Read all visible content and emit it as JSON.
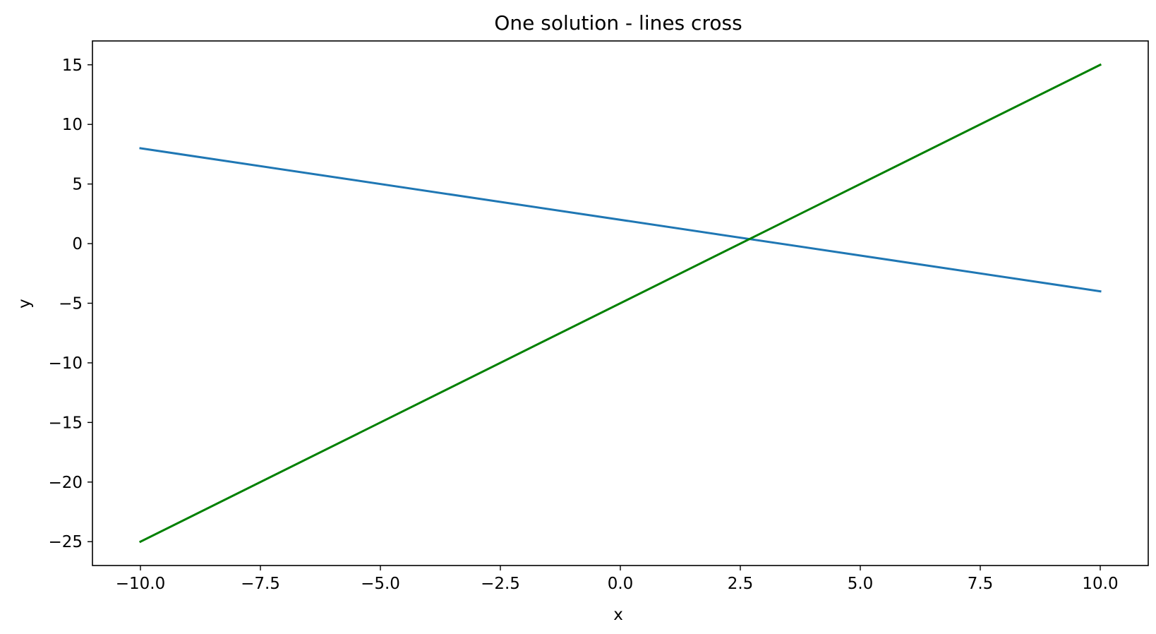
{
  "chart_data": {
    "type": "line",
    "title": "One solution -  lines cross",
    "xlabel": "x",
    "ylabel": "y",
    "xlim": [
      -11,
      11
    ],
    "ylim": [
      -27,
      17
    ],
    "grid": false,
    "xticks": [
      -10,
      -7.5,
      -5,
      -2.5,
      0,
      2.5,
      5,
      7.5,
      10
    ],
    "xtick_labels": [
      "−10.0",
      "−7.5",
      "−5.0",
      "−2.5",
      "0.0",
      "2.5",
      "5.0",
      "7.5",
      "10.0"
    ],
    "yticks": [
      15,
      10,
      5,
      0,
      -5,
      -10,
      -15,
      -20,
      -25
    ],
    "ytick_labels": [
      "15",
      "10",
      "5",
      "0",
      "−5",
      "−10",
      "−15",
      "−20",
      "−25"
    ],
    "series": [
      {
        "x": [
          -10,
          10
        ],
        "y": [
          8,
          -4
        ],
        "color": "#1f77b4"
      },
      {
        "x": [
          -10,
          10
        ],
        "y": [
          -25,
          15
        ],
        "color": "#008000"
      }
    ]
  }
}
